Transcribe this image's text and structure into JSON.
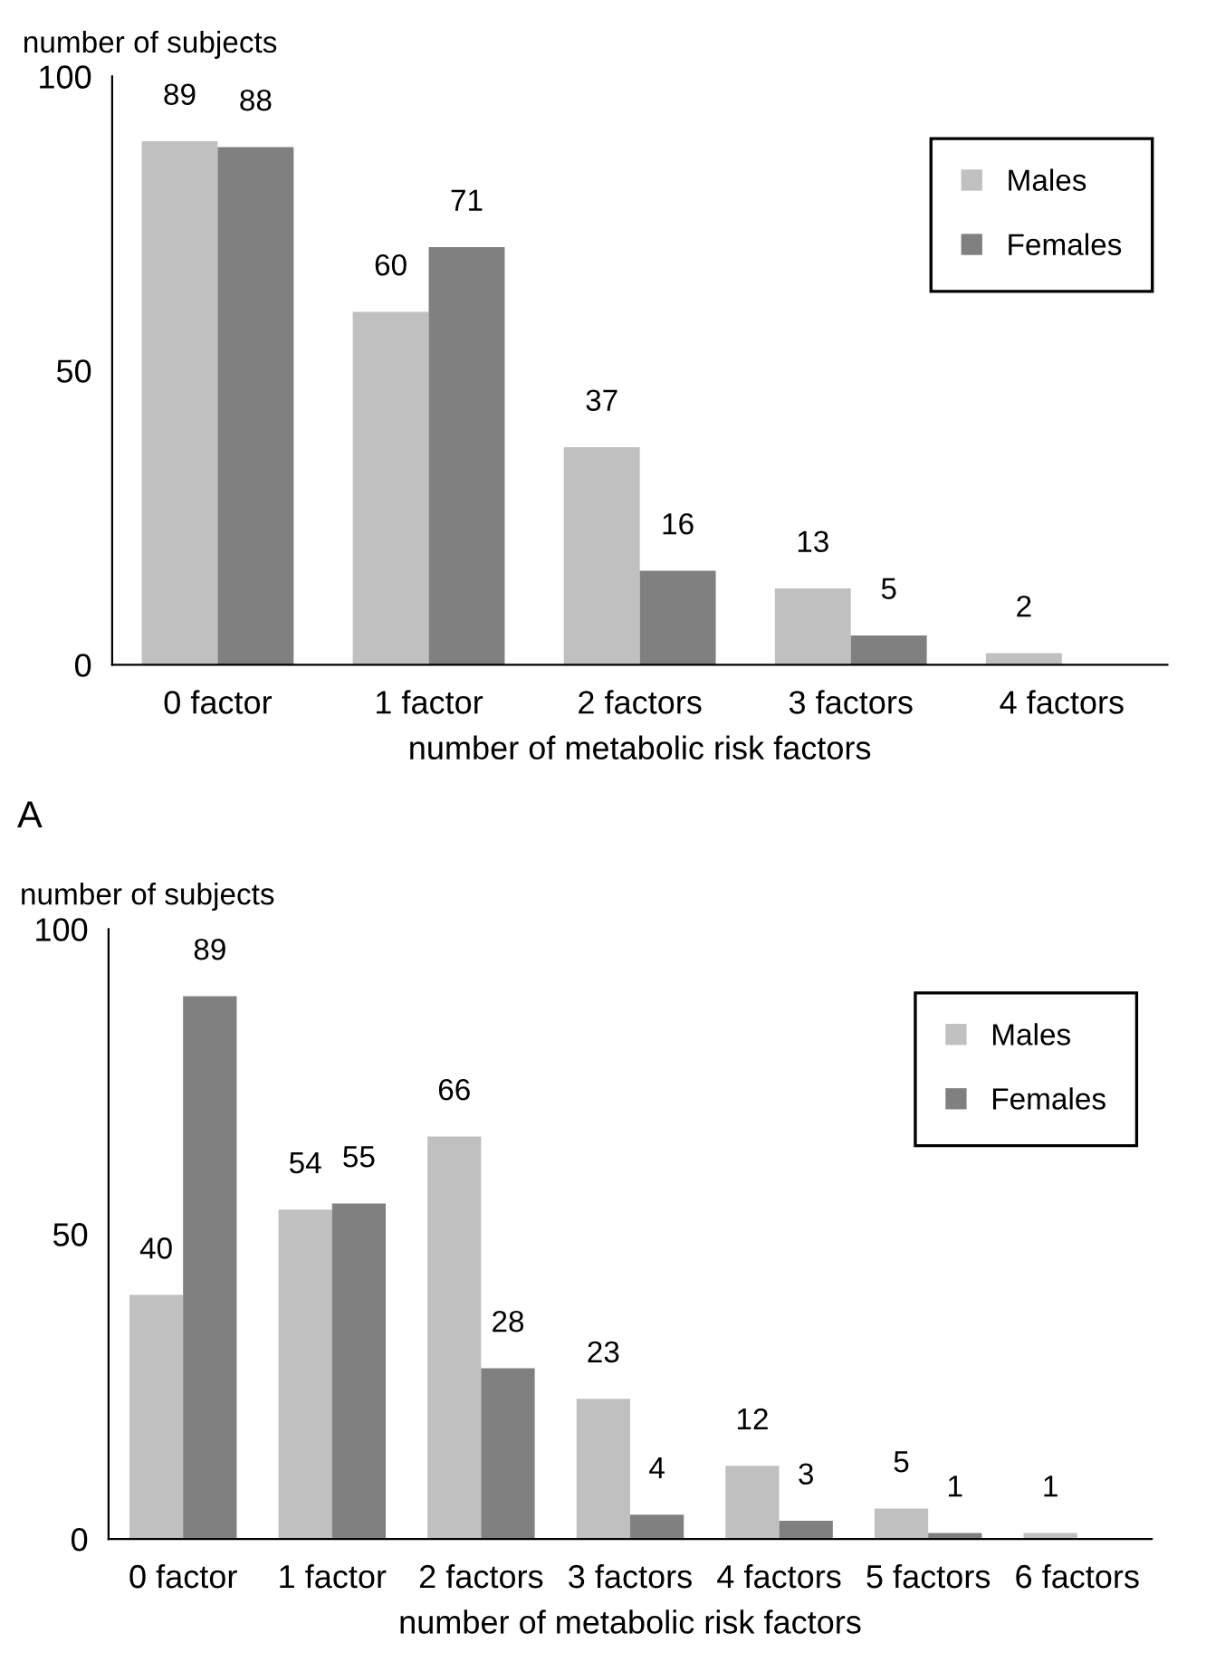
{
  "chart_data": [
    {
      "type": "bar",
      "xlabel": "number of metabolic risk factors",
      "ylabel": "number of subjects",
      "annotations": [
        "A"
      ],
      "categories": [
        "0 factor",
        "1 factor",
        "2 factors",
        "3 factors",
        "4 factors"
      ],
      "series": [
        {
          "name": "Males",
          "color": "#c0c0c0",
          "values": [
            89,
            60,
            37,
            13,
            2
          ]
        },
        {
          "name": "Females",
          "color": "#808080",
          "values": [
            88,
            71,
            16,
            5,
            null
          ]
        }
      ],
      "ylim": [
        0,
        100
      ],
      "yticks": [
        0,
        50,
        100
      ],
      "data_labels": true,
      "legend": "top right",
      "grid": false
    },
    {
      "type": "bar",
      "xlabel": "number of metabolic risk factors",
      "ylabel": "number of subjects",
      "categories": [
        "0 factor",
        "1 factor",
        "2 factors",
        "3 factors",
        "4 factors",
        "5 factors",
        "6 factors"
      ],
      "series": [
        {
          "name": "Males",
          "color": "#c0c0c0",
          "values": [
            40,
            54,
            66,
            23,
            12,
            5,
            1
          ]
        },
        {
          "name": "Females",
          "color": "#808080",
          "values": [
            89,
            55,
            28,
            4,
            3,
            1,
            null
          ]
        }
      ],
      "ylim": [
        0,
        100
      ],
      "yticks": [
        0,
        50,
        100
      ],
      "data_labels": true,
      "legend": "top right",
      "grid": false
    }
  ]
}
